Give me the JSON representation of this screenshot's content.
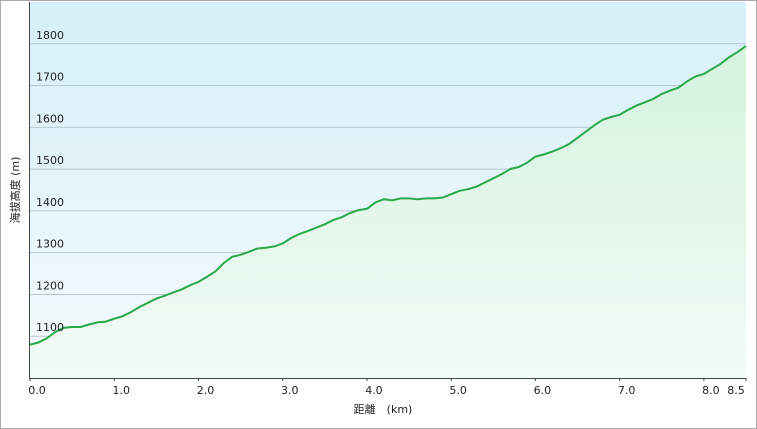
{
  "chart_data": {
    "type": "area",
    "xlabel": "距離　(km)",
    "ylabel": "海拔高度 (m)",
    "x": [
      0,
      0.1,
      0.2,
      0.3,
      0.4,
      0.5,
      0.6,
      0.7,
      0.8,
      0.9,
      1.0,
      1.1,
      1.2,
      1.3,
      1.4,
      1.5,
      1.6,
      1.7,
      1.8,
      1.9,
      2.0,
      2.1,
      2.2,
      2.3,
      2.4,
      2.5,
      2.6,
      2.7,
      2.8,
      2.9,
      3.0,
      3.1,
      3.2,
      3.3,
      3.4,
      3.5,
      3.6,
      3.7,
      3.8,
      3.9,
      4.0,
      4.1,
      4.2,
      4.3,
      4.4,
      4.5,
      4.6,
      4.7,
      4.8,
      4.9,
      5.0,
      5.1,
      5.2,
      5.3,
      5.4,
      5.5,
      5.6,
      5.7,
      5.8,
      5.9,
      6.0,
      6.1,
      6.2,
      6.3,
      6.4,
      6.5,
      6.6,
      6.7,
      6.8,
      6.9,
      7.0,
      7.1,
      7.2,
      7.3,
      7.4,
      7.5,
      7.6,
      7.7,
      7.8,
      7.9,
      8.0,
      8.1,
      8.2,
      8.3,
      8.4,
      8.5
    ],
    "values": [
      1080,
      1085,
      1095,
      1110,
      1120,
      1122,
      1122,
      1128,
      1133,
      1135,
      1142,
      1148,
      1158,
      1170,
      1180,
      1190,
      1197,
      1205,
      1212,
      1222,
      1230,
      1242,
      1255,
      1275,
      1290,
      1295,
      1302,
      1310,
      1312,
      1315,
      1322,
      1335,
      1345,
      1352,
      1360,
      1368,
      1378,
      1385,
      1395,
      1402,
      1405,
      1420,
      1428,
      1425,
      1430,
      1430,
      1428,
      1430,
      1430,
      1432,
      1440,
      1448,
      1452,
      1458,
      1468,
      1478,
      1488,
      1500,
      1505,
      1515,
      1530,
      1535,
      1542,
      1550,
      1560,
      1575,
      1590,
      1605,
      1618,
      1625,
      1630,
      1642,
      1652,
      1660,
      1668,
      1680,
      1688,
      1695,
      1710,
      1722,
      1728,
      1740,
      1752,
      1768,
      1780,
      1795
    ],
    "color": "#2aa84a",
    "xlim": [
      0,
      8.5
    ],
    "xticks": [
      {
        "value": 0,
        "label": "0.0"
      },
      {
        "value": 1,
        "label": "1.0"
      },
      {
        "value": 2,
        "label": "2.0"
      },
      {
        "value": 3,
        "label": "3.0"
      },
      {
        "value": 4,
        "label": "4.0"
      },
      {
        "value": 5,
        "label": "5.0"
      },
      {
        "value": 6,
        "label": "6.0"
      },
      {
        "value": 7,
        "label": "7.0"
      },
      {
        "value": 8,
        "label": "8.0"
      },
      8.5
    ],
    "ylim": [
      1000,
      1900
    ],
    "yticks": [
      1100,
      1200,
      1300,
      1400,
      1500,
      1600,
      1700,
      1800
    ],
    "grid": true
  }
}
